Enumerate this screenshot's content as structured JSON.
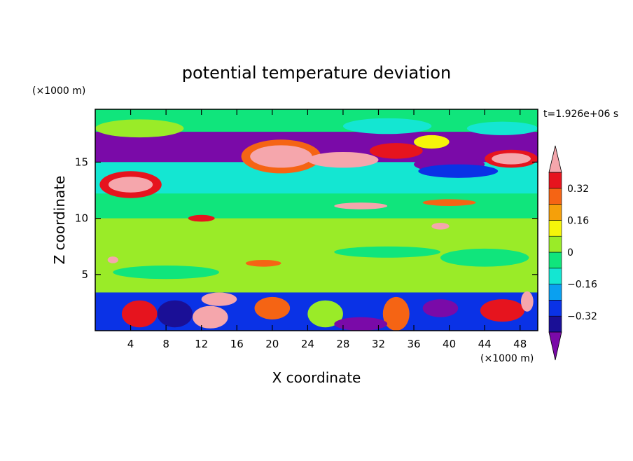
{
  "chart_data": {
    "type": "heatmap",
    "title": "potential temperature deviation",
    "xlabel": "X coordinate",
    "ylabel": "Z coordinate",
    "x_unit": "(×1000 m)",
    "y_unit": "(×1000 m)",
    "time_label": "t=1.926e+06 s",
    "xlim": [
      0,
      50
    ],
    "ylim": [
      0,
      19.7
    ],
    "x_ticks": [
      4,
      8,
      12,
      16,
      20,
      24,
      28,
      32,
      36,
      40,
      44,
      48
    ],
    "y_ticks": [
      5,
      10,
      15
    ],
    "colorbar": {
      "levels": [
        -0.4,
        -0.32,
        -0.24,
        -0.16,
        -0.08,
        0,
        0.08,
        0.16,
        0.24,
        0.32,
        0.4
      ],
      "labels": [
        "0.32",
        "0.16",
        "0",
        "−0.16",
        "−0.32"
      ],
      "label_values": [
        0.32,
        0.16,
        0,
        -0.16,
        -0.32
      ],
      "colors": [
        "#7a0aa8",
        "#1a0f96",
        "#0a32e6",
        "#0aa0f0",
        "#14e6d2",
        "#10e57c",
        "#9aeb28",
        "#f5f50a",
        "#f5a00a",
        "#f56414",
        "#e6141e",
        "#f5a6ac"
      ],
      "under_color": "#7a0aa8",
      "over_color": "#f5a6ac"
    },
    "bands": [
      {
        "z": [
          17.7,
          19.7
        ],
        "color": "#10e57c"
      },
      {
        "z": [
          15.0,
          17.7
        ],
        "color": "#7a0aa8"
      },
      {
        "z": [
          12.2,
          15.0
        ],
        "color": "#14e6d2"
      },
      {
        "z": [
          10.0,
          12.2
        ],
        "color": "#10e57c"
      },
      {
        "z": [
          3.4,
          10.0
        ],
        "color": "#9aeb28"
      },
      {
        "z": [
          0.0,
          3.4
        ],
        "color": "#0a32e6"
      }
    ],
    "features": [
      {
        "x": 21,
        "z": 15.5,
        "rx": 4.5,
        "rz": 1.5,
        "color": "#f56414"
      },
      {
        "x": 21,
        "z": 15.5,
        "rx": 3.5,
        "rz": 1.0,
        "color": "#f5a6ac"
      },
      {
        "x": 28,
        "z": 15.2,
        "rx": 4.0,
        "rz": 0.7,
        "color": "#f5a6ac"
      },
      {
        "x": 4,
        "z": 13.0,
        "rx": 3.5,
        "rz": 1.2,
        "color": "#e6141e"
      },
      {
        "x": 4,
        "z": 13.0,
        "rx": 2.5,
        "rz": 0.7,
        "color": "#f5a6ac"
      },
      {
        "x": 47,
        "z": 15.3,
        "rx": 3.0,
        "rz": 0.8,
        "color": "#e6141e"
      },
      {
        "x": 47,
        "z": 15.3,
        "rx": 2.2,
        "rz": 0.5,
        "color": "#f5a6ac"
      },
      {
        "x": 40,
        "z": 14.8,
        "rx": 4.0,
        "rz": 0.7,
        "color": "#7a0aa8"
      },
      {
        "x": 41,
        "z": 14.2,
        "rx": 4.5,
        "rz": 0.6,
        "color": "#0a32e6"
      },
      {
        "x": 38,
        "z": 16.8,
        "rx": 2.0,
        "rz": 0.6,
        "color": "#f5f50a"
      },
      {
        "x": 46,
        "z": 18.0,
        "rx": 4.0,
        "rz": 0.6,
        "color": "#14e6d2"
      },
      {
        "x": 33,
        "z": 18.2,
        "rx": 5.0,
        "rz": 0.7,
        "color": "#14e6d2"
      },
      {
        "x": 5,
        "z": 18.0,
        "rx": 5.0,
        "rz": 0.8,
        "color": "#9aeb28"
      },
      {
        "x": 34,
        "z": 16.0,
        "rx": 3.0,
        "rz": 0.7,
        "color": "#e6141e"
      },
      {
        "x": 30,
        "z": 11.1,
        "rx": 3.0,
        "rz": 0.3,
        "color": "#f5a6ac"
      },
      {
        "x": 40,
        "z": 11.4,
        "rx": 3.0,
        "rz": 0.3,
        "color": "#f56414"
      },
      {
        "x": 12,
        "z": 10.0,
        "rx": 1.5,
        "rz": 0.3,
        "color": "#e6141e"
      },
      {
        "x": 39,
        "z": 9.3,
        "rx": 1.0,
        "rz": 0.3,
        "color": "#f5a6ac"
      },
      {
        "x": 2,
        "z": 6.3,
        "rx": 0.6,
        "rz": 0.3,
        "color": "#f5a6ac"
      },
      {
        "x": 19,
        "z": 6.0,
        "rx": 2.0,
        "rz": 0.3,
        "color": "#f56414"
      },
      {
        "x": 33,
        "z": 7.0,
        "rx": 6.0,
        "rz": 0.5,
        "color": "#10e57c"
      },
      {
        "x": 8,
        "z": 5.2,
        "rx": 6.0,
        "rz": 0.6,
        "color": "#10e57c"
      },
      {
        "x": 44,
        "z": 6.5,
        "rx": 5.0,
        "rz": 0.8,
        "color": "#10e57c"
      },
      {
        "x": 14,
        "z": 2.8,
        "rx": 2.0,
        "rz": 0.6,
        "color": "#f5a6ac"
      },
      {
        "x": 5,
        "z": 1.5,
        "rx": 2.0,
        "rz": 1.2,
        "color": "#e6141e"
      },
      {
        "x": 13,
        "z": 1.2,
        "rx": 2.0,
        "rz": 1.0,
        "color": "#f5a6ac"
      },
      {
        "x": 20,
        "z": 2.0,
        "rx": 2.0,
        "rz": 1.0,
        "color": "#f56414"
      },
      {
        "x": 26,
        "z": 1.5,
        "rx": 2.0,
        "rz": 1.2,
        "color": "#9aeb28"
      },
      {
        "x": 34,
        "z": 1.5,
        "rx": 1.5,
        "rz": 1.5,
        "color": "#f56414"
      },
      {
        "x": 39,
        "z": 2.0,
        "rx": 2.0,
        "rz": 0.8,
        "color": "#7a0aa8"
      },
      {
        "x": 46,
        "z": 1.8,
        "rx": 2.5,
        "rz": 1.0,
        "color": "#e6141e"
      },
      {
        "x": 48.8,
        "z": 2.6,
        "rx": 0.7,
        "rz": 0.9,
        "color": "#f5a6ac"
      },
      {
        "x": 30,
        "z": 0.6,
        "rx": 3.0,
        "rz": 0.6,
        "color": "#7a0aa8"
      },
      {
        "x": 9,
        "z": 1.5,
        "rx": 2.0,
        "rz": 1.2,
        "color": "#1a0f96"
      }
    ]
  }
}
